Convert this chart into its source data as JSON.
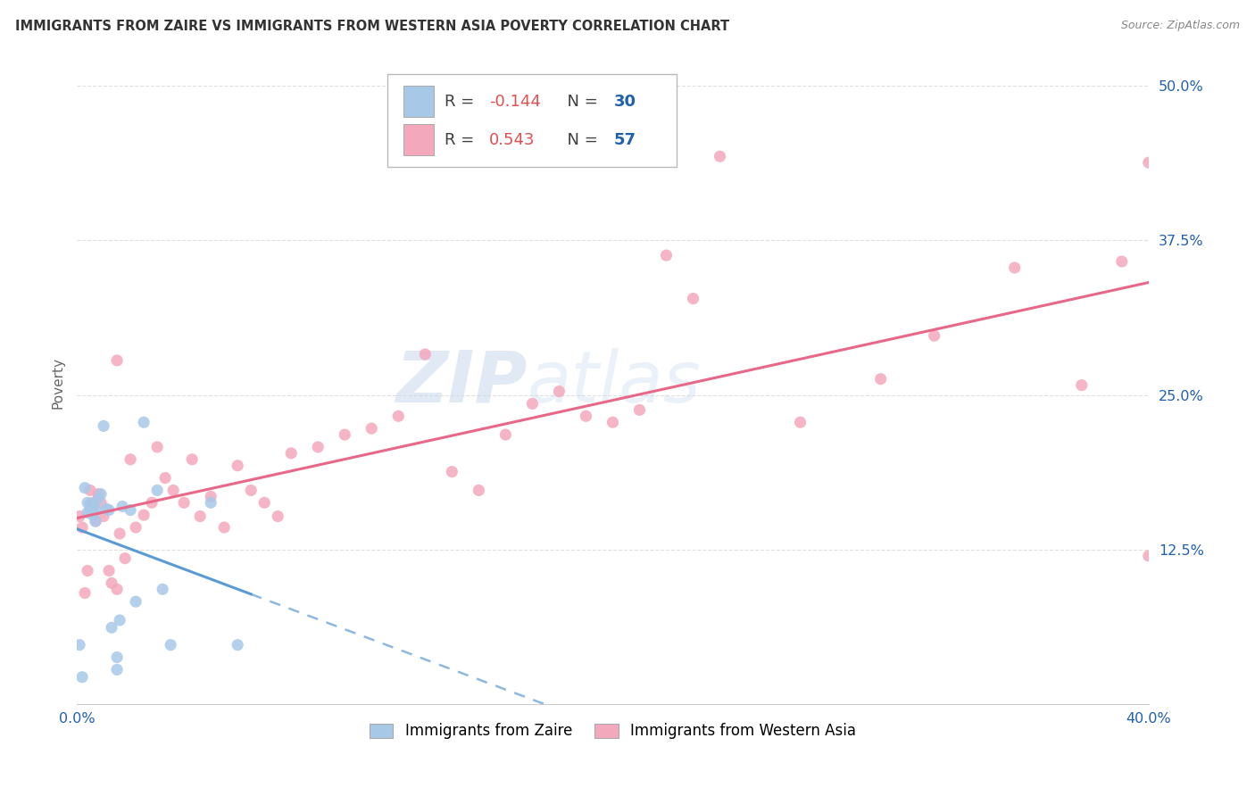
{
  "title": "IMMIGRANTS FROM ZAIRE VS IMMIGRANTS FROM WESTERN ASIA POVERTY CORRELATION CHART",
  "source": "Source: ZipAtlas.com",
  "ylabel": "Poverty",
  "xlim": [
    0.0,
    0.4
  ],
  "ylim": [
    0.0,
    0.52
  ],
  "ytick_labels": [
    "12.5%",
    "25.0%",
    "37.5%",
    "50.0%"
  ],
  "ytick_positions": [
    0.125,
    0.25,
    0.375,
    0.5
  ],
  "legend_label1": "Immigrants from Zaire",
  "legend_label2": "Immigrants from Western Asia",
  "color_zaire": "#a8c8e8",
  "color_western_asia": "#f4a8bc",
  "color_zaire_line": "#5b9bd5",
  "color_western_asia_line": "#e8688a",
  "color_R_value": "#e05050",
  "color_N_value": "#2060b0",
  "color_text_dark": "#404040",
  "color_grid": "#cccccc",
  "background_color": "#ffffff",
  "watermark_zip": "ZIP",
  "watermark_atlas": "atlas",
  "zaire_x": [
    0.001,
    0.002,
    0.003,
    0.004,
    0.004,
    0.005,
    0.005,
    0.006,
    0.006,
    0.006,
    0.007,
    0.007,
    0.008,
    0.009,
    0.01,
    0.011,
    0.012,
    0.013,
    0.015,
    0.015,
    0.016,
    0.017,
    0.02,
    0.022,
    0.025,
    0.03,
    0.032,
    0.035,
    0.05,
    0.06
  ],
  "zaire_y": [
    0.048,
    0.022,
    0.175,
    0.163,
    0.155,
    0.162,
    0.157,
    0.162,
    0.157,
    0.153,
    0.148,
    0.157,
    0.166,
    0.17,
    0.225,
    0.158,
    0.157,
    0.062,
    0.038,
    0.028,
    0.068,
    0.16,
    0.157,
    0.083,
    0.228,
    0.173,
    0.093,
    0.048,
    0.163,
    0.048
  ],
  "western_asia_x": [
    0.001,
    0.002,
    0.003,
    0.004,
    0.005,
    0.006,
    0.007,
    0.008,
    0.009,
    0.01,
    0.012,
    0.013,
    0.015,
    0.015,
    0.016,
    0.018,
    0.02,
    0.022,
    0.025,
    0.028,
    0.03,
    0.033,
    0.036,
    0.04,
    0.043,
    0.046,
    0.05,
    0.055,
    0.06,
    0.065,
    0.07,
    0.075,
    0.08,
    0.09,
    0.1,
    0.11,
    0.12,
    0.13,
    0.14,
    0.15,
    0.16,
    0.17,
    0.18,
    0.19,
    0.2,
    0.21,
    0.22,
    0.23,
    0.24,
    0.27,
    0.3,
    0.32,
    0.35,
    0.375,
    0.39,
    0.4,
    0.4
  ],
  "western_asia_y": [
    0.152,
    0.143,
    0.09,
    0.108,
    0.173,
    0.163,
    0.148,
    0.17,
    0.163,
    0.152,
    0.108,
    0.098,
    0.093,
    0.278,
    0.138,
    0.118,
    0.198,
    0.143,
    0.153,
    0.163,
    0.208,
    0.183,
    0.173,
    0.163,
    0.198,
    0.152,
    0.168,
    0.143,
    0.193,
    0.173,
    0.163,
    0.152,
    0.203,
    0.208,
    0.218,
    0.223,
    0.233,
    0.283,
    0.188,
    0.173,
    0.218,
    0.243,
    0.253,
    0.233,
    0.228,
    0.238,
    0.363,
    0.328,
    0.443,
    0.228,
    0.263,
    0.298,
    0.353,
    0.258,
    0.358,
    0.12,
    0.438
  ]
}
